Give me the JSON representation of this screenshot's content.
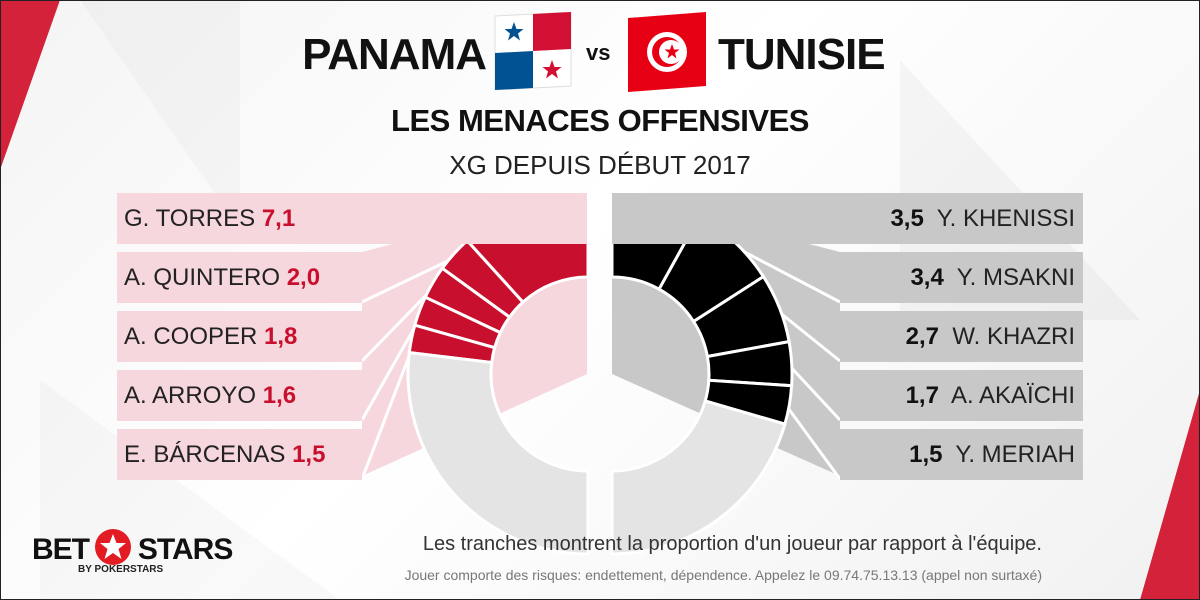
{
  "header": {
    "team_left": "PANAMA",
    "vs": "vs",
    "team_right": "TUNISIE",
    "title": "LES MENACES OFFENSIVES",
    "subtitle": "XG DEPUIS DÉBUT 2017"
  },
  "colors": {
    "left_accent": "#c8102e",
    "left_row_bg": "#f6d7dd",
    "right_accent": "#000000",
    "right_row_bg": "#c8c8c8",
    "remainder": "#e4e4e4"
  },
  "chart_data": {
    "type": "pie",
    "left": {
      "team": "PANAMA",
      "players": [
        {
          "name": "G. TORRES",
          "value": "7,1",
          "xg": 7.1
        },
        {
          "name": "A. QUINTERO",
          "value": "2,0",
          "xg": 2.0
        },
        {
          "name": "A. COOPER",
          "value": "1,8",
          "xg": 1.8
        },
        {
          "name": "A. ARROYO",
          "value": "1,6",
          "xg": 1.6
        },
        {
          "name": "E. BÁRCENAS",
          "value": "1,5",
          "xg": 1.5
        }
      ]
    },
    "right": {
      "team": "TUNISIE",
      "players": [
        {
          "name": "Y. KHENISSI",
          "value": "3,5",
          "xg": 3.5
        },
        {
          "name": "Y. MSAKNI",
          "value": "3,4",
          "xg": 3.4
        },
        {
          "name": "W. KHAZRI",
          "value": "2,7",
          "xg": 2.7
        },
        {
          "name": "A. AKAÏCHI",
          "value": "1,7",
          "xg": 1.7
        },
        {
          "name": "Y. MERIAH",
          "value": "1,5",
          "xg": 1.5
        }
      ]
    }
  },
  "footer": {
    "note": "Les tranches montrent la proportion d'un joueur par rapport à l'équipe.",
    "legal": "Jouer comporte des risques: endettement, dépendence. Appelez le 09.74.75.13.13  (appel non surtaxé)",
    "logo_left": "BET",
    "logo_right": "STARS",
    "logo_sub": "BY POKERSTARS"
  }
}
